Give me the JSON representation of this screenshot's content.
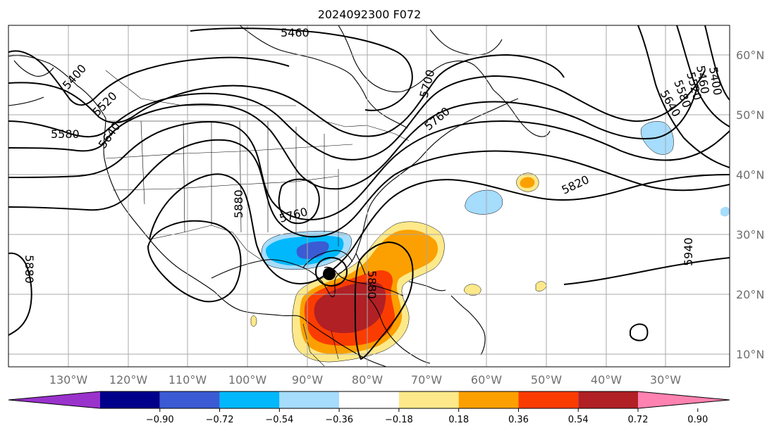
{
  "title": "2024092300 F072",
  "map": {
    "lat_labels": [
      "60°N",
      "50°N",
      "40°N",
      "30°N",
      "20°N",
      "10°N"
    ],
    "lon_labels": [
      "130°W",
      "120°W",
      "110°W",
      "100°W",
      "90°W",
      "80°W",
      "70°W",
      "60°W",
      "50°W",
      "40°W",
      "30°W"
    ],
    "contour_labels": [
      "5460",
      "5400",
      "5520",
      "5580",
      "5640",
      "5700",
      "5760",
      "5880",
      "5760",
      "5820",
      "5640",
      "5580",
      "5520",
      "5460",
      "5400",
      "5940",
      "5880",
      "5880"
    ],
    "shading_colors": {
      "light_blue": "#a6dcfc",
      "blue": "#00b8fb",
      "royal_blue": "#3a5bd3",
      "yellow": "#fde98a",
      "orange": "#fba000",
      "red_orange": "#fb3c00",
      "dark_red": "#b02025"
    },
    "storm_marker": "black-dot"
  },
  "colorbar": {
    "ticks": [
      "−0.90",
      "−0.72",
      "−0.54",
      "−0.36",
      "−0.18",
      "0.18",
      "0.36",
      "0.54",
      "0.72",
      "0.90"
    ],
    "colors": [
      "#9a32cc",
      "#00008b",
      "#3a5bd3",
      "#00b8fb",
      "#a6dcfc",
      "#ffffff",
      "#fde98a",
      "#fba000",
      "#fb3c00",
      "#b02025",
      "#ff82b0"
    ]
  }
}
